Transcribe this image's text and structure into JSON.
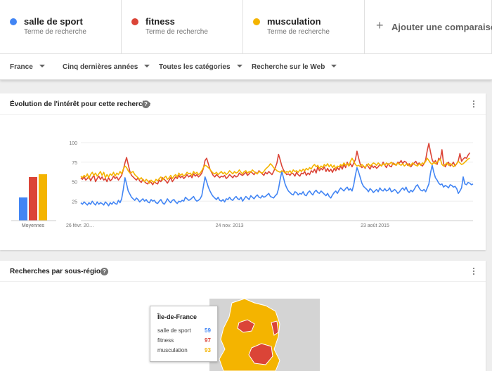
{
  "search_terms": [
    {
      "name": "salle de sport",
      "subtitle": "Terme de recherche",
      "color": "#4285f4"
    },
    {
      "name": "fitness",
      "subtitle": "Terme de recherche",
      "color": "#db4437"
    },
    {
      "name": "musculation",
      "subtitle": "Terme de recherche",
      "color": "#f4b400"
    }
  ],
  "add_comparison": {
    "label": "Ajouter une comparaison",
    "icon": "plus-icon"
  },
  "filters": {
    "region": "France",
    "period": "Cinq dernières années",
    "category": "Toutes les catégories",
    "search_type": "Recherche sur le Web"
  },
  "interest_card": {
    "title": "Évolution de l'intérêt pour cette recherche",
    "help_icon": "help-icon",
    "menu_icon": "more-vert-icon"
  },
  "region_card": {
    "title": "Recherches par sous-région",
    "help_icon": "help-icon",
    "menu_icon": "more-vert-icon"
  },
  "tooltip": {
    "region": "Île-de-France",
    "rows": [
      {
        "label": "salle de sport",
        "value": "59",
        "color": "#4285f4"
      },
      {
        "label": "fitness",
        "value": "97",
        "color": "#db4437"
      },
      {
        "label": "musculation",
        "value": "93",
        "color": "#f4b400"
      }
    ]
  },
  "chart_data": {
    "type": "line",
    "averages_label": "Moyennes",
    "averages": [
      {
        "name": "salle de sport",
        "value": 33
      },
      {
        "name": "fitness",
        "value": 62
      },
      {
        "name": "musculation",
        "value": 66
      }
    ],
    "y_ticks": [
      25,
      50,
      75,
      100
    ],
    "ylim": [
      0,
      100
    ],
    "x_tick_labels": [
      {
        "label": "26 févr. 20…",
        "index": 0
      },
      {
        "label": "24 nov. 2013",
        "index": 91
      },
      {
        "label": "23 août 2015",
        "index": 180
      }
    ],
    "series": [
      {
        "name": "salle de sport",
        "color": "#4285f4",
        "values": [
          23,
          21,
          24,
          22,
          20,
          23,
          21,
          25,
          22,
          20,
          24,
          21,
          23,
          22,
          20,
          24,
          22,
          19,
          23,
          21,
          24,
          22,
          21,
          26,
          23,
          28,
          40,
          55,
          47,
          38,
          34,
          30,
          28,
          26,
          29,
          27,
          24,
          26,
          28,
          25,
          27,
          24,
          23,
          27,
          25,
          26,
          23,
          22,
          25,
          27,
          23,
          21,
          24,
          28,
          25,
          23,
          26,
          27,
          24,
          22,
          25,
          24,
          26,
          25,
          30,
          28,
          26,
          27,
          29,
          31,
          27,
          25,
          26,
          28,
          32,
          44,
          56,
          50,
          43,
          38,
          34,
          31,
          29,
          27,
          30,
          26,
          25,
          27,
          24,
          28,
          27,
          30,
          27,
          26,
          29,
          31,
          28,
          27,
          30,
          25,
          28,
          31,
          29,
          27,
          32,
          30,
          28,
          31,
          33,
          30,
          29,
          32,
          30,
          31,
          33,
          35,
          31,
          30,
          29,
          32,
          34,
          41,
          53,
          63,
          55,
          47,
          42,
          38,
          36,
          34,
          33,
          37,
          36,
          33,
          35,
          34,
          37,
          33,
          32,
          36,
          38,
          35,
          33,
          37,
          39,
          36,
          35,
          38,
          36,
          34,
          32,
          35,
          31,
          29,
          33,
          36,
          38,
          35,
          39,
          42,
          40,
          38,
          41,
          43,
          39,
          41,
          38,
          46,
          58,
          68,
          62,
          55,
          48,
          44,
          42,
          40,
          37,
          41,
          39,
          36,
          38,
          40,
          37,
          42,
          39,
          38,
          41,
          38,
          39,
          42,
          37,
          38,
          40,
          38,
          35,
          37,
          40,
          42,
          39,
          43,
          38,
          36,
          39,
          37,
          40,
          44,
          46,
          42,
          39,
          38,
          40,
          37,
          42,
          47,
          61,
          71,
          62,
          55,
          52,
          48,
          46,
          47,
          43,
          45,
          44,
          42,
          46,
          45,
          43,
          44,
          41,
          35,
          38,
          42,
          56,
          47,
          46,
          49,
          48,
          46,
          47
        ]
      },
      {
        "name": "fitness",
        "color": "#db4437",
        "values": [
          55,
          53,
          56,
          52,
          54,
          57,
          51,
          55,
          58,
          50,
          54,
          57,
          53,
          56,
          52,
          54,
          50,
          55,
          51,
          53,
          57,
          54,
          56,
          52,
          55,
          58,
          65,
          74,
          81,
          72,
          63,
          58,
          56,
          54,
          52,
          55,
          51,
          49,
          53,
          50,
          48,
          47,
          51,
          49,
          46,
          50,
          48,
          47,
          52,
          50,
          55,
          53,
          51,
          48,
          52,
          55,
          50,
          53,
          56,
          54,
          58,
          55,
          57,
          54,
          56,
          59,
          56,
          58,
          55,
          60,
          57,
          59,
          56,
          58,
          61,
          67,
          77,
          80,
          73,
          66,
          62,
          58,
          56,
          59,
          57,
          55,
          57,
          56,
          58,
          54,
          56,
          59,
          57,
          55,
          58,
          56,
          57,
          61,
          59,
          58,
          60,
          62,
          58,
          60,
          63,
          61,
          59,
          62,
          60,
          64,
          62,
          60,
          58,
          62,
          60,
          63,
          61,
          59,
          63,
          68,
          74,
          85,
          78,
          70,
          65,
          62,
          59,
          60,
          58,
          61,
          60,
          57,
          62,
          59,
          57,
          61,
          60,
          63,
          58,
          61,
          59,
          64,
          62,
          66,
          61,
          69,
          64,
          67,
          65,
          69,
          63,
          67,
          63,
          66,
          62,
          67,
          64,
          68,
          65,
          70,
          66,
          72,
          68,
          75,
          70,
          73,
          69,
          74,
          78,
          89,
          80,
          72,
          68,
          70,
          67,
          72,
          69,
          66,
          71,
          68,
          70,
          67,
          69,
          72,
          70,
          75,
          71,
          68,
          73,
          70,
          69,
          74,
          72,
          71,
          75,
          74,
          77,
          73,
          76,
          75,
          71,
          73,
          69,
          72,
          74,
          76,
          72,
          74,
          72,
          70,
          73,
          78,
          90,
          99,
          88,
          78,
          74,
          77,
          72,
          80,
          78,
          91,
          73,
          69,
          73,
          75,
          70,
          72,
          75,
          70,
          73,
          77,
          86,
          76,
          79,
          81,
          80,
          84,
          87
        ]
      },
      {
        "name": "musculation",
        "color": "#f4b400",
        "values": [
          57,
          55,
          58,
          56,
          60,
          54,
          59,
          62,
          58,
          61,
          57,
          60,
          63,
          58,
          62,
          55,
          59,
          56,
          60,
          58,
          62,
          57,
          61,
          59,
          63,
          60,
          66,
          70,
          68,
          64,
          61,
          62,
          63,
          59,
          57,
          55,
          53,
          55,
          52,
          50,
          53,
          51,
          48,
          52,
          50,
          49,
          53,
          51,
          54,
          56,
          52,
          55,
          57,
          53,
          55,
          58,
          54,
          57,
          59,
          56,
          61,
          58,
          60,
          57,
          59,
          62,
          60,
          61,
          58,
          63,
          60,
          62,
          59,
          61,
          64,
          68,
          71,
          70,
          68,
          66,
          63,
          61,
          60,
          62,
          59,
          61,
          63,
          60,
          62,
          59,
          61,
          64,
          62,
          60,
          63,
          61,
          62,
          65,
          62,
          60,
          63,
          64,
          61,
          63,
          62,
          65,
          63,
          61,
          60,
          63,
          62,
          61,
          63,
          66,
          68,
          70,
          73,
          71,
          68,
          66,
          64,
          63,
          62,
          64,
          63,
          61,
          63,
          62,
          64,
          61,
          65,
          63,
          64,
          62,
          65,
          63,
          66,
          64,
          67,
          65,
          68,
          66,
          70,
          72,
          69,
          71,
          67,
          70,
          68,
          72,
          70,
          73,
          69,
          72,
          68,
          71,
          67,
          70,
          69,
          72,
          70,
          74,
          71,
          73,
          70,
          76,
          80,
          76,
          72,
          70,
          71,
          69,
          72,
          70,
          68,
          71,
          73,
          70,
          72,
          74,
          73,
          71,
          74,
          72,
          70,
          73,
          71,
          74,
          72,
          73,
          75,
          72,
          73,
          71,
          74,
          72,
          71,
          73,
          70,
          72,
          73,
          70,
          71,
          74,
          72,
          71,
          70,
          73,
          71,
          74,
          73,
          76,
          80,
          77,
          74,
          72,
          75,
          73,
          75,
          77,
          79,
          72,
          70,
          72,
          74,
          71,
          73,
          72,
          69,
          71,
          73,
          76,
          74,
          72,
          73,
          75,
          77,
          79,
          80
        ]
      }
    ]
  }
}
